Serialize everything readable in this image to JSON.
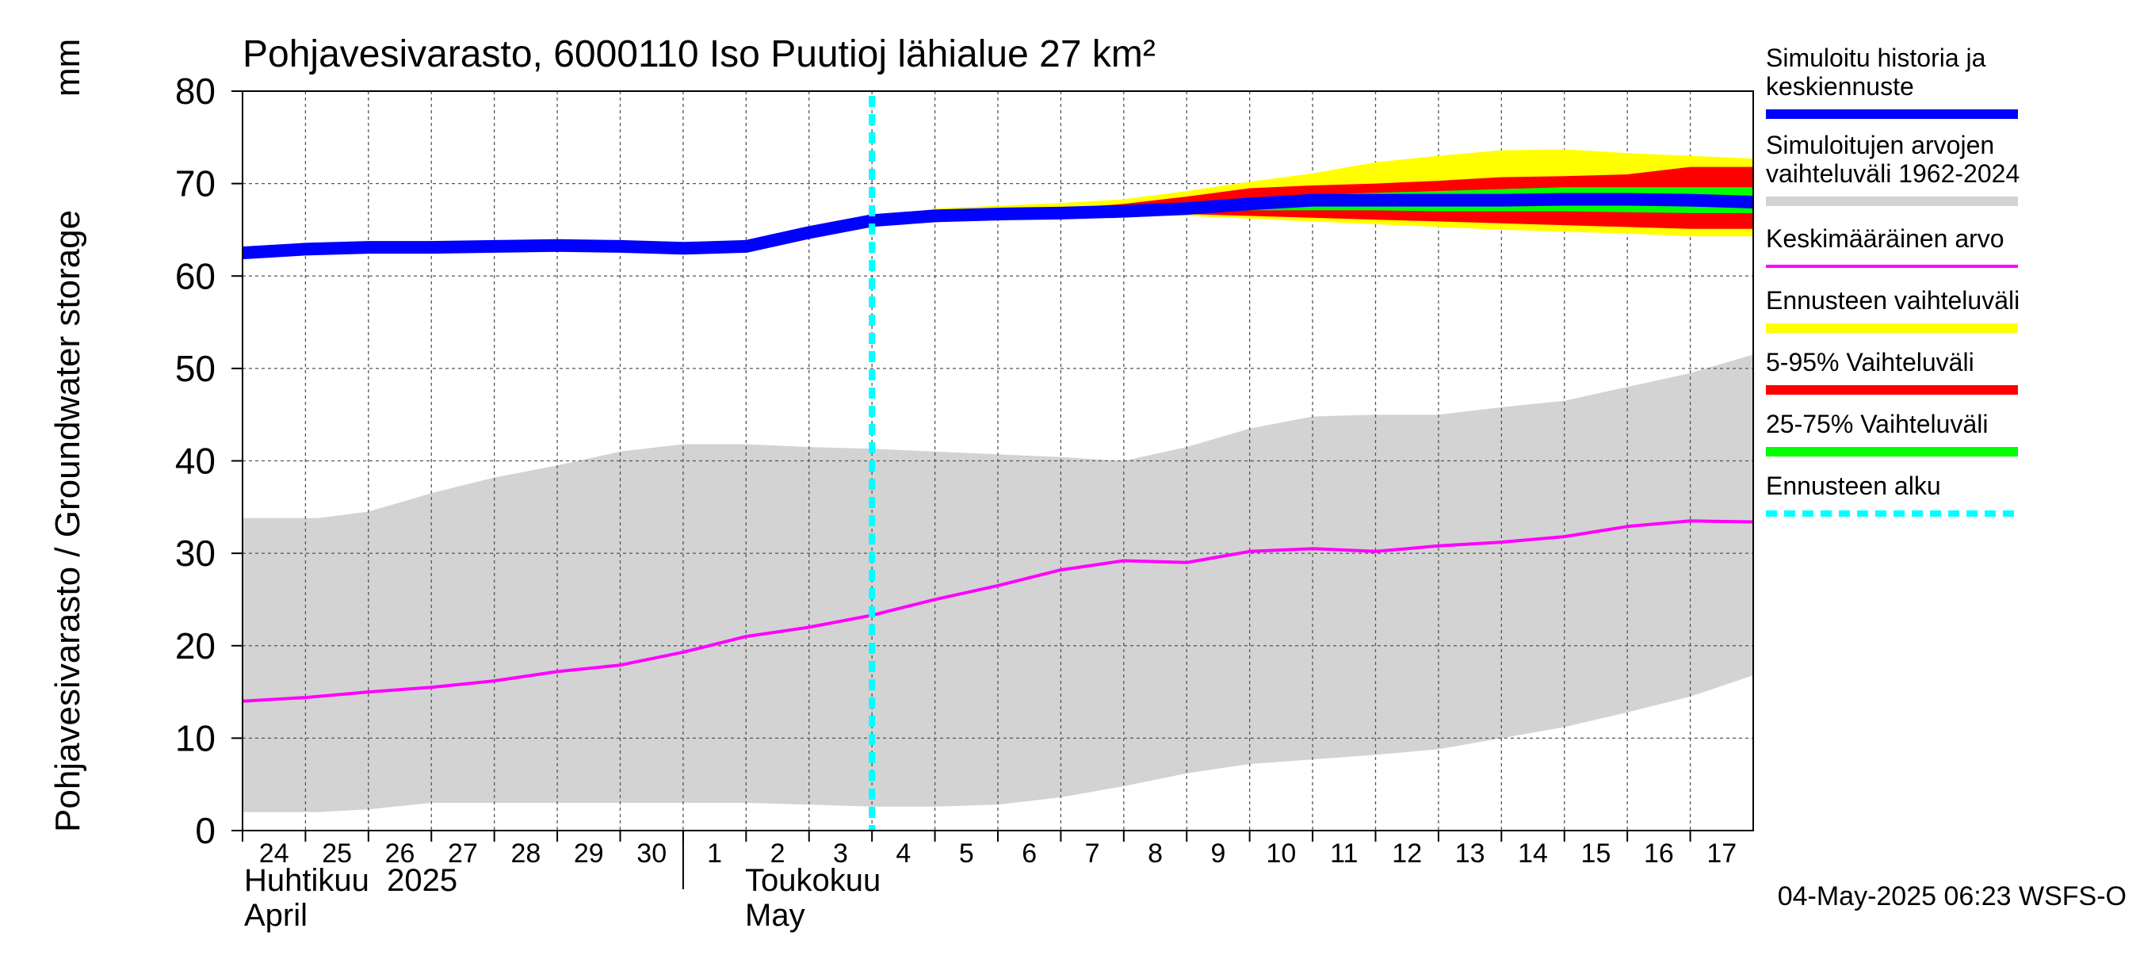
{
  "chart_data": {
    "type": "area",
    "title": "Pohjavesivarasto, 6000110 Iso Puutioj lähialue 27 km²",
    "ylabel": "Pohjavesivarasto / Groundwater storage",
    "yunit": "mm",
    "ylim": [
      0,
      80
    ],
    "yticks": [
      0,
      10,
      20,
      30,
      40,
      50,
      60,
      70,
      80
    ],
    "xlim": [
      0,
      24
    ],
    "grid": true,
    "legend_position": "right",
    "x_tick_labels": [
      "24",
      "25",
      "26",
      "27",
      "28",
      "29",
      "30",
      "1",
      "2",
      "3",
      "4",
      "5",
      "6",
      "7",
      "8",
      "9",
      "10",
      "11",
      "12",
      "13",
      "14",
      "15",
      "16",
      "17"
    ],
    "month_labels": [
      {
        "fi": "Huhtikuu  2025",
        "en": "April"
      },
      {
        "fi": "Toukokuu",
        "en": "May"
      }
    ],
    "forecast_start_x": 10.0,
    "footer": "04-May-2025 06:23 WSFS-O",
    "legend": [
      {
        "label": "Simuloitu historia ja keskiennuste",
        "lines": [
          "Simuloitu historia ja",
          "keskiennuste"
        ],
        "color": "#0000ff",
        "style": "solid"
      },
      {
        "label": "Simuloitujen arvojen vaihteluväli 1962-2024",
        "lines": [
          "Simuloitujen arvojen",
          "vaihteluväli 1962-2024"
        ],
        "color": "#d3d3d3",
        "style": "solid"
      },
      {
        "label": "Keskimääräinen arvo",
        "lines": [
          "Keskimääräinen arvo"
        ],
        "color": "#ff00ff",
        "style": "thin"
      },
      {
        "label": "Ennusteen vaihteluväli",
        "lines": [
          "Ennusteen vaihteluväli"
        ],
        "color": "#ffff00",
        "style": "solid"
      },
      {
        "label": "5-95% Vaihteluväli",
        "lines": [
          "5-95% Vaihteluväli"
        ],
        "color": "#ff0000",
        "style": "solid"
      },
      {
        "label": "25-75% Vaihteluväli",
        "lines": [
          "25-75% Vaihteluväli"
        ],
        "color": "#00ff00",
        "style": "solid"
      },
      {
        "label": "Ennusteen alku",
        "lines": [
          "Ennusteen alku"
        ],
        "color": "#00ffff",
        "style": "dashed"
      }
    ],
    "series": {
      "historical_range": {
        "x": [
          0,
          1.2,
          2,
          3,
          4,
          5,
          6,
          7,
          8,
          9,
          10,
          11,
          12,
          13,
          14,
          15,
          16,
          17,
          18,
          19,
          20,
          21,
          22,
          23,
          24
        ],
        "upper": [
          33.8,
          33.8,
          34.5,
          36.5,
          38.2,
          39.5,
          41,
          41.8,
          41.8,
          41.5,
          41.3,
          41,
          40.7,
          40.4,
          40,
          41.5,
          43.5,
          44.8,
          45,
          45,
          45.8,
          46.5,
          48,
          49.5,
          51.5
        ],
        "lower": [
          2,
          2,
          2.3,
          3,
          3,
          3,
          3,
          3,
          3,
          2.8,
          2.6,
          2.6,
          2.8,
          3.6,
          4.8,
          6.2,
          7.2,
          7.7,
          8.2,
          8.8,
          10,
          11.2,
          12.8,
          14.5,
          16.8
        ]
      },
      "mean_value": {
        "x": [
          0,
          1,
          2,
          3,
          4,
          5,
          6,
          7,
          8,
          9,
          10,
          11,
          12,
          13,
          14,
          15,
          16,
          17,
          18,
          19,
          20,
          21,
          22,
          23,
          24
        ],
        "y": [
          14,
          14.4,
          15,
          15.5,
          16.2,
          17.2,
          17.9,
          19.3,
          21,
          22,
          23.3,
          25,
          26.5,
          28.2,
          29.2,
          29,
          30.2,
          30.5,
          30.2,
          30.8,
          31.2,
          31.8,
          32.9,
          33.5,
          33.4
        ]
      },
      "forecast_range": {
        "x": [
          10,
          11,
          12,
          13,
          14,
          15,
          16,
          17,
          18,
          19,
          20,
          21,
          22,
          23,
          24
        ],
        "upper": [
          66.2,
          67.3,
          67.6,
          67.9,
          68.3,
          69.2,
          70.2,
          71.1,
          72.3,
          73,
          73.6,
          73.7,
          73.3,
          73,
          72.7
        ],
        "lower": [
          65.8,
          66.2,
          66.2,
          66.3,
          66.5,
          66.5,
          66.2,
          65.9,
          65.6,
          65.3,
          65,
          64.8,
          64.6,
          64.3,
          64.3
        ]
      },
      "p5_95": {
        "x": [
          10,
          11,
          12,
          13,
          14,
          15,
          16,
          17,
          18,
          19,
          20,
          21,
          22,
          23,
          24
        ],
        "upper": [
          66.1,
          66.9,
          67.1,
          67.3,
          67.8,
          68.6,
          69.5,
          69.8,
          70,
          70.3,
          70.7,
          70.8,
          71,
          71.8,
          71.8
        ],
        "lower": [
          65.9,
          66.4,
          66.4,
          66.5,
          66.6,
          66.7,
          66.5,
          66.3,
          66.1,
          65.9,
          65.7,
          65.5,
          65.3,
          65.1,
          65.1
        ]
      },
      "p25_75": {
        "x": [
          10,
          11,
          12,
          13,
          14,
          15,
          16,
          17,
          18,
          19,
          20,
          21,
          22,
          23,
          24
        ],
        "upper": [
          66,
          66.6,
          66.8,
          67,
          67.3,
          67.8,
          68.4,
          68.8,
          69,
          69.2,
          69.4,
          69.6,
          69.6,
          69.6,
          69.6
        ],
        "lower": [
          66,
          66.5,
          66.6,
          66.7,
          66.8,
          67,
          67.1,
          67.1,
          67.1,
          67,
          67,
          67,
          66.9,
          66.8,
          66.8
        ]
      },
      "simulated": {
        "x": [
          0,
          1,
          2,
          3,
          4,
          5,
          6,
          7,
          8,
          9,
          10,
          11,
          12,
          13,
          14,
          15,
          16,
          17,
          18,
          19,
          20,
          21,
          22,
          23,
          24
        ],
        "y": [
          62.5,
          62.9,
          63.1,
          63.1,
          63.2,
          63.3,
          63.2,
          63,
          63.2,
          64.7,
          66,
          66.5,
          66.7,
          66.8,
          67,
          67.3,
          67.8,
          68.2,
          68.2,
          68.2,
          68.2,
          68.3,
          68.3,
          68.2,
          68
        ]
      }
    }
  }
}
